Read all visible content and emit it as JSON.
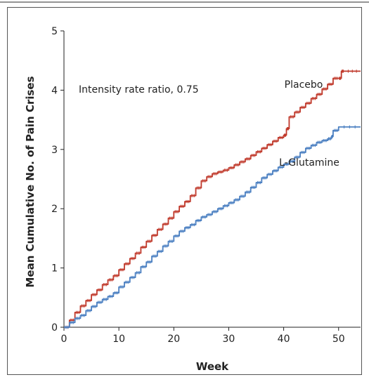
{
  "chart_data": {
    "type": "line",
    "title": "",
    "xlabel": "Week",
    "ylabel": "Mean Cumulative No. of Pain Crises",
    "xlim": [
      0,
      54
    ],
    "ylim": [
      0,
      5
    ],
    "x_ticks": [
      0,
      10,
      20,
      30,
      40,
      50
    ],
    "y_ticks": [
      0,
      1,
      2,
      3,
      4,
      5
    ],
    "grid": false,
    "annotation": "Intensity rate ratio, 0.75",
    "series": [
      {
        "name": "Placebo",
        "color": "#c0392b",
        "x": [
          0,
          1,
          2,
          3,
          4,
          5,
          6,
          7,
          8,
          9,
          10,
          11,
          12,
          13,
          14,
          15,
          16,
          17,
          18,
          19,
          20,
          21,
          22,
          23,
          24,
          25,
          26,
          27,
          28,
          29,
          30,
          31,
          32,
          33,
          34,
          35,
          36,
          37,
          38,
          39,
          40,
          40.5,
          41,
          42,
          43,
          44,
          45,
          46,
          47,
          48,
          49,
          50,
          50.5,
          51,
          54
        ],
        "y": [
          0,
          0.12,
          0.25,
          0.36,
          0.45,
          0.55,
          0.63,
          0.72,
          0.8,
          0.87,
          0.97,
          1.07,
          1.16,
          1.25,
          1.35,
          1.45,
          1.55,
          1.65,
          1.74,
          1.84,
          1.95,
          2.04,
          2.12,
          2.22,
          2.35,
          2.47,
          2.54,
          2.59,
          2.62,
          2.65,
          2.69,
          2.74,
          2.79,
          2.84,
          2.9,
          2.96,
          3.02,
          3.08,
          3.14,
          3.2,
          3.24,
          3.35,
          3.55,
          3.63,
          3.71,
          3.78,
          3.86,
          3.93,
          4.02,
          4.1,
          4.2,
          4.2,
          4.32,
          4.32,
          4.32
        ]
      },
      {
        "name": "L-Glutamine",
        "color": "#4a7fc1",
        "x": [
          0,
          1,
          2,
          3,
          4,
          5,
          6,
          7,
          8,
          9,
          10,
          11,
          12,
          13,
          14,
          15,
          16,
          17,
          18,
          19,
          20,
          21,
          22,
          23,
          24,
          25,
          26,
          27,
          28,
          29,
          30,
          31,
          32,
          33,
          34,
          35,
          36,
          37,
          38,
          39,
          40,
          41,
          42,
          43,
          44,
          45,
          46,
          47,
          48,
          48.7,
          49,
          50,
          54
        ],
        "y": [
          0,
          0.08,
          0.15,
          0.2,
          0.28,
          0.35,
          0.42,
          0.47,
          0.52,
          0.58,
          0.68,
          0.76,
          0.84,
          0.92,
          1.02,
          1.1,
          1.2,
          1.28,
          1.37,
          1.45,
          1.54,
          1.62,
          1.68,
          1.73,
          1.8,
          1.86,
          1.9,
          1.95,
          2.0,
          2.05,
          2.1,
          2.15,
          2.21,
          2.28,
          2.36,
          2.44,
          2.52,
          2.58,
          2.64,
          2.7,
          2.75,
          2.8,
          2.87,
          2.95,
          3.02,
          3.07,
          3.12,
          3.15,
          3.18,
          3.22,
          3.32,
          3.38,
          3.38
        ]
      }
    ],
    "series_labels": [
      "Placebo",
      "L-Glutamine"
    ]
  }
}
